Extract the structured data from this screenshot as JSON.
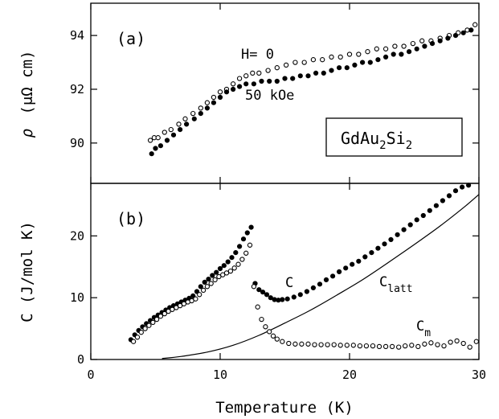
{
  "chart_data": [
    {
      "type": "scatter",
      "panel_label": "(a)",
      "xlabel": "",
      "ylabel_parts": [
        "ρ",
        "(μΩ cm)"
      ],
      "xlim": [
        0,
        30
      ],
      "ylim": [
        88.5,
        95.2
      ],
      "yticks": [
        90,
        92,
        94
      ],
      "compound_label": {
        "base": "GdAu",
        "sub1": "2",
        "mid": "Si",
        "sub2": "2"
      },
      "annotations": [
        "H= 0",
        "50 kOe"
      ],
      "series": [
        {
          "name": "H= 0",
          "marker": "open-circle",
          "x": [
            4.6,
            4.9,
            5.2,
            5.7,
            6.2,
            6.8,
            7.3,
            7.9,
            8.5,
            9.0,
            9.5,
            10.0,
            10.5,
            11.0,
            11.5,
            12.0,
            12.5,
            13.0,
            13.7,
            14.4,
            15.1,
            15.8,
            16.5,
            17.2,
            17.9,
            18.6,
            19.3,
            20.0,
            20.7,
            21.4,
            22.1,
            22.8,
            23.5,
            24.2,
            24.9,
            25.6,
            26.3,
            27.0,
            27.7,
            28.4,
            29.1,
            29.7
          ],
          "y": [
            90.1,
            90.2,
            90.2,
            90.4,
            90.5,
            90.7,
            90.9,
            91.1,
            91.3,
            91.5,
            91.7,
            91.9,
            92.0,
            92.2,
            92.4,
            92.5,
            92.6,
            92.6,
            92.7,
            92.8,
            92.9,
            93.0,
            93.0,
            93.1,
            93.1,
            93.2,
            93.2,
            93.3,
            93.3,
            93.4,
            93.5,
            93.5,
            93.6,
            93.6,
            93.7,
            93.8,
            93.8,
            93.9,
            94.0,
            94.1,
            94.2,
            94.4
          ]
        },
        {
          "name": "50 kOe",
          "marker": "filled-circle",
          "x": [
            4.7,
            5.0,
            5.4,
            5.9,
            6.4,
            6.9,
            7.4,
            8.0,
            8.5,
            9.0,
            9.5,
            10.0,
            10.5,
            11.0,
            11.5,
            12.0,
            12.6,
            13.2,
            13.8,
            14.4,
            15.0,
            15.6,
            16.2,
            16.8,
            17.4,
            18.0,
            18.6,
            19.2,
            19.8,
            20.4,
            21.0,
            21.6,
            22.2,
            22.8,
            23.4,
            24.0,
            24.6,
            25.2,
            25.8,
            26.4,
            27.0,
            27.6,
            28.2,
            28.8,
            29.4
          ],
          "y": [
            89.6,
            89.8,
            89.9,
            90.1,
            90.3,
            90.5,
            90.7,
            90.9,
            91.1,
            91.3,
            91.5,
            91.7,
            91.9,
            92.0,
            92.1,
            92.2,
            92.2,
            92.3,
            92.3,
            92.3,
            92.4,
            92.4,
            92.5,
            92.5,
            92.6,
            92.6,
            92.7,
            92.8,
            92.8,
            92.9,
            93.0,
            93.0,
            93.1,
            93.2,
            93.3,
            93.3,
            93.4,
            93.5,
            93.6,
            93.7,
            93.8,
            93.9,
            94.0,
            94.1,
            94.2
          ]
        }
      ]
    },
    {
      "type": "scatter",
      "panel_label": "(b)",
      "xlabel": "Temperature (K)",
      "ylabel": "C (J/mol K)",
      "xlim": [
        0,
        30
      ],
      "ylim": [
        0,
        28.5
      ],
      "xticks": [
        0,
        10,
        20,
        30
      ],
      "yticks": [
        0,
        10,
        20
      ],
      "annotations": [
        {
          "text": "C",
          "sub": ""
        },
        {
          "text": "C",
          "sub": "latt"
        },
        {
          "text": "C",
          "sub": "m"
        }
      ],
      "series": [
        {
          "name": "C",
          "marker": "filled-circle",
          "x": [
            3.1,
            3.4,
            3.7,
            4.0,
            4.3,
            4.6,
            4.9,
            5.2,
            5.5,
            5.8,
            6.1,
            6.4,
            6.7,
            7.0,
            7.3,
            7.6,
            7.9,
            8.2,
            8.5,
            8.8,
            9.1,
            9.4,
            9.7,
            10.0,
            10.3,
            10.6,
            10.9,
            11.2,
            11.5,
            11.8,
            12.1,
            12.4,
            12.7,
            13.0,
            13.3,
            13.6,
            13.9,
            14.2,
            14.5,
            14.8,
            15.2,
            15.7,
            16.2,
            16.7,
            17.2,
            17.7,
            18.2,
            18.7,
            19.2,
            19.7,
            20.2,
            20.7,
            21.2,
            21.7,
            22.2,
            22.7,
            23.2,
            23.7,
            24.2,
            24.7,
            25.2,
            25.7,
            26.2,
            26.7,
            27.2,
            27.7,
            28.2,
            28.7,
            29.2
          ],
          "y": [
            3.2,
            4.0,
            4.7,
            5.3,
            5.8,
            6.3,
            6.8,
            7.2,
            7.6,
            8.0,
            8.4,
            8.7,
            9.0,
            9.3,
            9.6,
            9.9,
            10.3,
            11.0,
            11.8,
            12.5,
            13.0,
            13.6,
            14.1,
            14.7,
            15.2,
            15.8,
            16.5,
            17.3,
            18.3,
            19.5,
            20.5,
            21.4,
            12.3,
            11.3,
            10.9,
            10.5,
            10.0,
            9.7,
            9.6,
            9.7,
            9.8,
            10.1,
            10.5,
            11.0,
            11.6,
            12.2,
            12.9,
            13.5,
            14.2,
            14.8,
            15.4,
            15.9,
            16.6,
            17.3,
            18.0,
            18.7,
            19.4,
            20.2,
            21.0,
            21.8,
            22.6,
            23.3,
            24.1,
            24.9,
            25.7,
            26.5,
            27.3,
            27.9,
            28.2
          ]
        },
        {
          "name": "C_m",
          "marker": "open-circle",
          "x": [
            3.3,
            3.6,
            3.9,
            4.2,
            4.5,
            4.8,
            5.1,
            5.4,
            5.7,
            6.0,
            6.3,
            6.6,
            6.9,
            7.2,
            7.5,
            7.8,
            8.1,
            8.4,
            8.7,
            9.0,
            9.3,
            9.6,
            9.9,
            10.2,
            10.5,
            10.8,
            11.1,
            11.4,
            11.7,
            12.0,
            12.3,
            12.6,
            12.9,
            13.2,
            13.5,
            13.8,
            14.1,
            14.4,
            14.8,
            15.3,
            15.8,
            16.3,
            16.8,
            17.3,
            17.8,
            18.3,
            18.8,
            19.3,
            19.8,
            20.3,
            20.8,
            21.3,
            21.8,
            22.3,
            22.8,
            23.3,
            23.8,
            24.3,
            24.8,
            25.3,
            25.8,
            26.3,
            26.8,
            27.3,
            27.8,
            28.3,
            28.8,
            29.3,
            29.8
          ],
          "y": [
            2.9,
            3.6,
            4.4,
            5.0,
            5.5,
            6.0,
            6.5,
            7.0,
            7.4,
            7.8,
            8.1,
            8.4,
            8.7,
            9.0,
            9.3,
            9.5,
            9.8,
            10.5,
            11.2,
            11.8,
            12.3,
            12.9,
            13.4,
            13.7,
            14.0,
            14.3,
            14.8,
            15.4,
            16.2,
            17.2,
            18.5,
            11.8,
            8.5,
            6.5,
            5.3,
            4.5,
            3.8,
            3.3,
            2.9,
            2.6,
            2.5,
            2.5,
            2.5,
            2.4,
            2.4,
            2.4,
            2.4,
            2.3,
            2.3,
            2.3,
            2.2,
            2.2,
            2.2,
            2.1,
            2.1,
            2.1,
            2.0,
            2.2,
            2.3,
            2.1,
            2.5,
            2.7,
            2.4,
            2.2,
            2.8,
            3.0,
            2.6,
            2.0,
            2.9
          ]
        },
        {
          "name": "C_latt",
          "marker": "line",
          "x": [
            5.5,
            7,
            9,
            11,
            13,
            15,
            17,
            19,
            21,
            23,
            25,
            27,
            29,
            30
          ],
          "y": [
            0.15,
            0.5,
            1.2,
            2.3,
            3.9,
            5.9,
            8.0,
            10.4,
            12.9,
            15.7,
            18.6,
            21.6,
            24.9,
            26.7
          ]
        }
      ]
    }
  ]
}
